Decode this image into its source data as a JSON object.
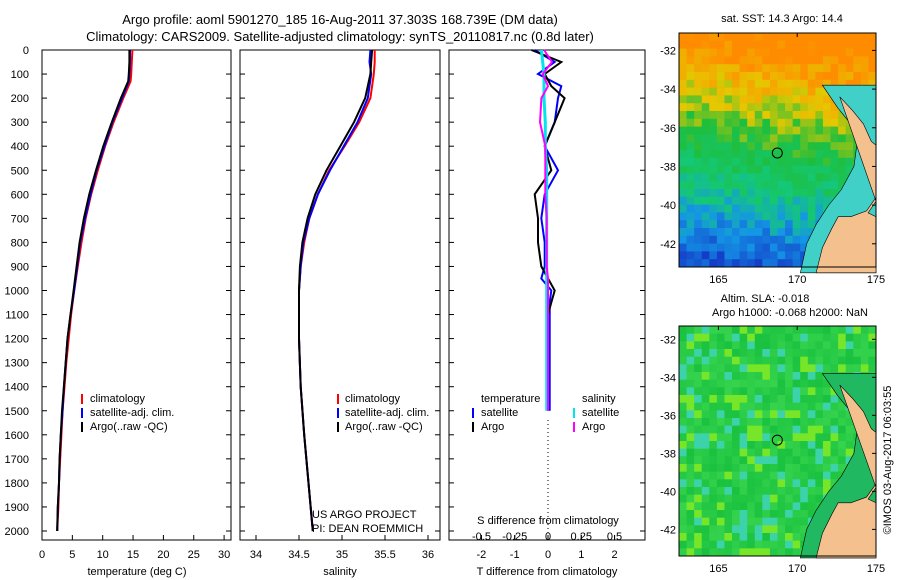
{
  "title": {
    "line1": "Argo profile: aoml 5901270_185 16-Aug-2011 37.303S 168.739E (DM data)",
    "line2": "Climatology: CARS2009. Satellite-adjusted climatology: synTS_20110817.nc (0.8d later)"
  },
  "credit": "©IMOS 03-Aug-2017 06:03:55",
  "colors": {
    "climatology": "#ff0000",
    "satellite": "#0000ff",
    "argo": "#000000",
    "sal_satellite": "#00e5ee",
    "sal_argo": "#ff00ff"
  },
  "chart_data": [
    {
      "type": "line",
      "name": "temperature",
      "xlabel": "temperature (deg C)",
      "ylabel": "",
      "xlim": [
        -0.5,
        31
      ],
      "ylim": [
        2040,
        0
      ],
      "xticks": [
        "0",
        "5",
        "10",
        "15",
        "20",
        "25",
        "30"
      ],
      "yticks": [
        "0",
        "100",
        "200",
        "300",
        "400",
        "500",
        "600",
        "700",
        "800",
        "900",
        "1000",
        "1100",
        "1200",
        "1300",
        "1400",
        "1500",
        "1600",
        "1700",
        "1800",
        "1900",
        "2000"
      ],
      "depth": [
        0,
        50,
        100,
        130,
        200,
        300,
        400,
        500,
        600,
        700,
        800,
        900,
        1000,
        1100,
        1200,
        1300,
        1400,
        1500,
        1600,
        1700,
        1800,
        1900,
        2000
      ],
      "series": [
        {
          "name": "climatology",
          "values": [
            14.9,
            14.8,
            14.7,
            14.6,
            13.4,
            11.8,
            10.4,
            9.2,
            8.1,
            7.2,
            6.5,
            5.9,
            5.3,
            4.8,
            4.4,
            4.0,
            3.7,
            3.4,
            3.2,
            3.0,
            2.8,
            2.7,
            2.5
          ]
        },
        {
          "name": "satellite-adj. clim.",
          "values": [
            14.5,
            14.5,
            14.4,
            14.3,
            13.2,
            11.6,
            10.3,
            9.0,
            8.0,
            7.1,
            6.3,
            5.8,
            5.3,
            4.7,
            4.2,
            3.9,
            3.6,
            3.4,
            3.1,
            2.9,
            2.8,
            2.6,
            2.5
          ]
        },
        {
          "name": "Argo(..raw -QC)",
          "values": [
            14.4,
            14.4,
            14.3,
            14.2,
            13.0,
            11.5,
            10.1,
            8.9,
            7.8,
            6.9,
            6.2,
            5.7,
            5.2,
            4.7,
            4.2,
            3.9,
            3.6,
            3.3,
            3.1,
            2.9,
            2.8,
            2.6,
            2.5
          ]
        }
      ],
      "legend": [
        "climatology",
        "satellite-adj. clim.",
        "Argo(..raw -QC)"
      ]
    },
    {
      "type": "line",
      "name": "salinity",
      "xlabel": "salinity",
      "xlim": [
        33.8,
        36.1
      ],
      "ylim": [
        2040,
        0
      ],
      "xticks": [
        "34",
        "34.5",
        "35",
        "35.5",
        "36"
      ],
      "depth": [
        0,
        50,
        100,
        200,
        300,
        400,
        500,
        600,
        700,
        800,
        900,
        1000,
        1200,
        1400,
        1600,
        1800,
        2000
      ],
      "series": [
        {
          "name": "climatology",
          "values": [
            35.38,
            35.38,
            35.37,
            35.33,
            35.2,
            35.03,
            34.85,
            34.72,
            34.62,
            34.56,
            34.52,
            34.5,
            34.5,
            34.52,
            34.56,
            34.61,
            34.66
          ]
        },
        {
          "name": "satellite-adj. clim.",
          "values": [
            35.33,
            35.32,
            35.34,
            35.3,
            35.18,
            35.02,
            34.86,
            34.72,
            34.62,
            34.55,
            34.52,
            34.5,
            34.5,
            34.52,
            34.56,
            34.61,
            34.66
          ]
        },
        {
          "name": "Argo(..raw -QC)",
          "values": [
            35.35,
            35.34,
            35.33,
            35.27,
            35.14,
            34.98,
            34.82,
            34.69,
            34.6,
            34.54,
            34.51,
            34.5,
            34.5,
            34.52,
            34.56,
            34.61,
            34.66
          ]
        }
      ],
      "legend": [
        "climatology",
        "satellite-adj. clim.",
        "Argo(..raw -QC)"
      ],
      "annotation": [
        "US ARGO PROJECT",
        "PI: DEAN ROEMMICH"
      ]
    },
    {
      "type": "line",
      "name": "differences",
      "xlabel": "T difference from climatology",
      "xlabel2": "S difference from climatology",
      "xlim": [
        -3,
        3
      ],
      "xticks": [
        "-2",
        "-1",
        "0",
        "1",
        "2"
      ],
      "xticks2": [
        "-0.5",
        "-0.25",
        "0",
        "0.25",
        "0.5"
      ],
      "depth": [
        0,
        50,
        100,
        150,
        200,
        300,
        400,
        500,
        600,
        700,
        800,
        900,
        950,
        1000,
        1050,
        1100,
        1200,
        1400,
        1500
      ],
      "series": [
        {
          "name": "temperature satellite",
          "values": [
            -0.4,
            0.2,
            -0.3,
            0.4,
            0.3,
            0.2,
            -0.1,
            0.3,
            -0.1,
            -0.2,
            -0.1,
            -0.1,
            -0.2,
            0.1,
            0.05,
            0.05,
            0.05,
            0.05,
            0.05
          ]
        },
        {
          "name": "temperature Argo",
          "values": [
            -0.5,
            0.4,
            -0.1,
            0.1,
            0.5,
            0.2,
            -0.1,
            0.1,
            -0.4,
            -0.3,
            -0.3,
            -0.2,
            0.0,
            0.2,
            0.1,
            0.0,
            0.0,
            0.0,
            0.0
          ]
        },
        {
          "name": "salinity satellite",
          "values": [
            -0.05,
            -0.04,
            -0.03,
            -0.03,
            -0.03,
            -0.02,
            -0.02,
            -0.01,
            -0.01,
            -0.01,
            -0.01,
            -0.01,
            -0.01,
            -0.01,
            -0.01,
            -0.01,
            -0.01,
            -0.01,
            -0.01
          ]
        },
        {
          "name": "salinity Argo",
          "values": [
            -0.03,
            0.03,
            -0.04,
            0.0,
            -0.05,
            -0.06,
            -0.02,
            -0.02,
            -0.02,
            -0.01,
            -0.01,
            -0.01,
            0.0,
            0.0,
            0.0,
            0.0,
            0.0,
            0.0,
            0.0
          ]
        }
      ],
      "legend_t_title": "temperature",
      "legend_s_title": "salinity",
      "legend_t": [
        "satellite",
        "Argo"
      ],
      "legend_s": [
        "satellite",
        "Argo"
      ]
    },
    {
      "type": "heatmap",
      "name": "sst-map",
      "title": "sat. SST: 14.3 Argo: 14.4",
      "xlim": [
        162.5,
        175
      ],
      "ylim": [
        -43.5,
        -31.2
      ],
      "xticks": [
        "165",
        "170",
        "175"
      ],
      "yticks": [
        "-32",
        "-34",
        "-36",
        "-38",
        "-40",
        "-42"
      ],
      "profile_location": [
        168.739,
        -37.303
      ]
    },
    {
      "type": "heatmap",
      "name": "sla-map",
      "title": "Altim. SLA: -0.018",
      "subtitle": "Argo h1000: -0.068 h2000: NaN",
      "xlim": [
        162.5,
        175
      ],
      "ylim": [
        -43.5,
        -31.3
      ],
      "xticks": [
        "165",
        "170",
        "175"
      ],
      "yticks": [
        "-32",
        "-34",
        "-36",
        "-38",
        "-40",
        "-42"
      ],
      "profile_location": [
        168.739,
        -37.303
      ]
    }
  ]
}
